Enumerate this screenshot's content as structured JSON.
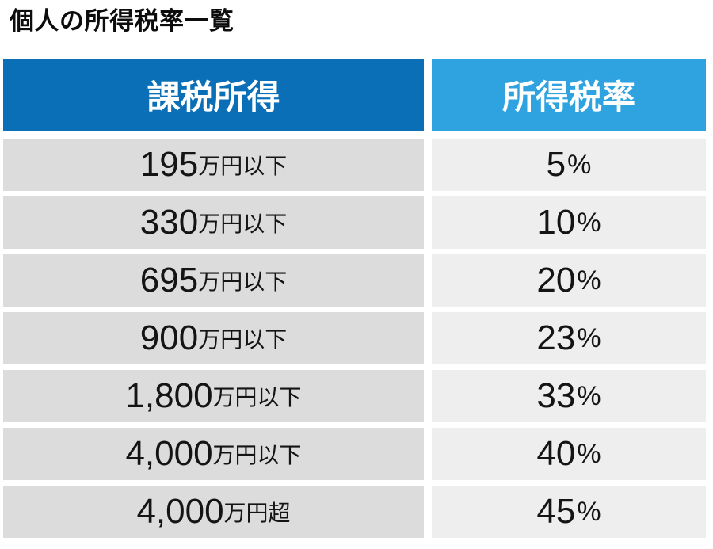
{
  "title": "個人の所得税率一覧",
  "table": {
    "headers": {
      "taxable_income": "課税所得",
      "income_tax_rate": "所得税率"
    },
    "rows": [
      {
        "amount": "195",
        "unit": "万円以下",
        "rate": "5",
        "rate_unit": "%"
      },
      {
        "amount": "330",
        "unit": "万円以下",
        "rate": "10",
        "rate_unit": "%"
      },
      {
        "amount": "695",
        "unit": "万円以下",
        "rate": "20",
        "rate_unit": "%"
      },
      {
        "amount": "900",
        "unit": "万円以下",
        "rate": "23",
        "rate_unit": "%"
      },
      {
        "amount": "1,800",
        "unit": "万円以下",
        "rate": "33",
        "rate_unit": "%"
      },
      {
        "amount": "4,000",
        "unit": "万円以下",
        "rate": "40",
        "rate_unit": "%"
      },
      {
        "amount": "4,000",
        "unit": "万円超",
        "rate": "45",
        "rate_unit": "%"
      }
    ],
    "colors": {
      "header_taxable_bg": "#0a6fb6",
      "header_rate_bg": "#2ea3e0",
      "cell_taxable_bg": "#dcdcdc",
      "cell_rate_bg": "#eeeeee",
      "header_text": "#ffffff",
      "cell_text": "#141414"
    }
  }
}
